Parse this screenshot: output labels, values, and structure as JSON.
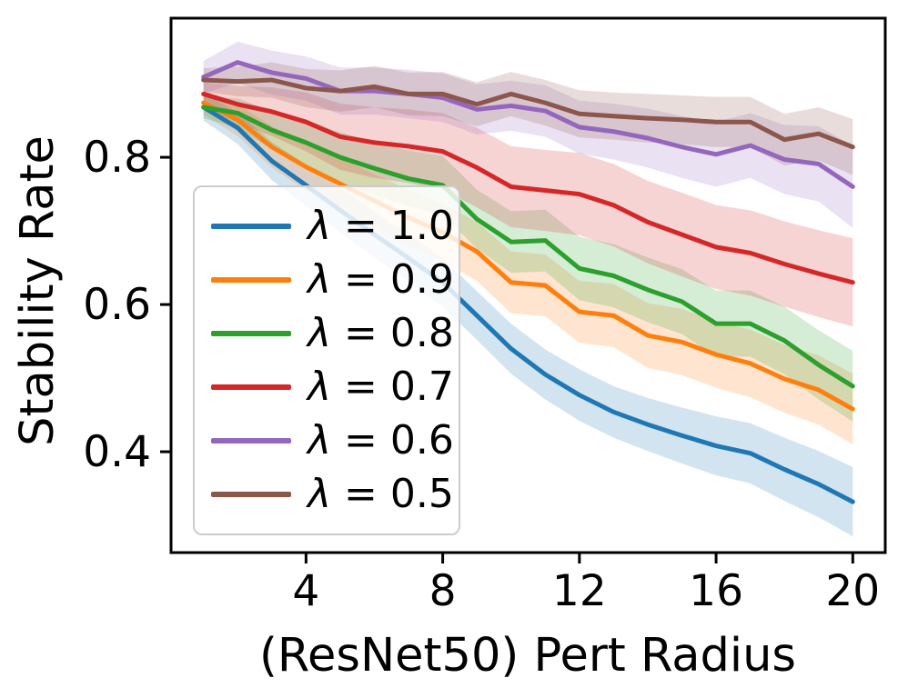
{
  "chart_data": {
    "type": "line",
    "title": "",
    "xlabel": "(ResNet50) Pert Radius",
    "ylabel": "Stability Rate",
    "grid": false,
    "legend_position": "center-left",
    "xlim": [
      0.05,
      20.95
    ],
    "ylim": [
      0.263,
      0.989
    ],
    "xticks": [
      4,
      8,
      12,
      16,
      20
    ],
    "xtick_labels": [
      "4",
      "8",
      "12",
      "16",
      "20"
    ],
    "yticks": [
      0.4,
      0.6,
      0.8
    ],
    "ytick_labels": [
      "0.4",
      "0.6",
      "0.8"
    ],
    "x": [
      1,
      2,
      3,
      4,
      5,
      6,
      7,
      8,
      9,
      10,
      11,
      12,
      13,
      14,
      15,
      16,
      17,
      18,
      19,
      20
    ],
    "series": [
      {
        "name": "λ = 1.0",
        "color": "#1f77b4",
        "values": [
          0.868,
          0.84,
          0.795,
          0.762,
          0.728,
          0.695,
          0.663,
          0.63,
          0.585,
          0.54,
          0.505,
          0.477,
          0.454,
          0.437,
          0.422,
          0.408,
          0.398,
          0.376,
          0.356,
          0.332
        ],
        "band": [
          0.018,
          0.022,
          0.026,
          0.028,
          0.03,
          0.031,
          0.032,
          0.033,
          0.033,
          0.034,
          0.034,
          0.035,
          0.035,
          0.036,
          0.038,
          0.04,
          0.041,
          0.043,
          0.045,
          0.047
        ]
      },
      {
        "name": "λ = 0.9",
        "color": "#ff7f0e",
        "values": [
          0.874,
          0.851,
          0.814,
          0.787,
          0.764,
          0.741,
          0.718,
          0.698,
          0.672,
          0.63,
          0.626,
          0.59,
          0.585,
          0.558,
          0.549,
          0.532,
          0.52,
          0.499,
          0.484,
          0.458
        ],
        "band": [
          0.016,
          0.022,
          0.028,
          0.032,
          0.035,
          0.036,
          0.038,
          0.039,
          0.04,
          0.042,
          0.042,
          0.042,
          0.043,
          0.044,
          0.045,
          0.045,
          0.046,
          0.046,
          0.047,
          0.048
        ]
      },
      {
        "name": "λ = 0.8",
        "color": "#2ca02c",
        "values": [
          0.868,
          0.86,
          0.837,
          0.82,
          0.8,
          0.785,
          0.771,
          0.762,
          0.716,
          0.685,
          0.687,
          0.649,
          0.639,
          0.62,
          0.604,
          0.574,
          0.574,
          0.551,
          0.518,
          0.489
        ],
        "band": [
          0.015,
          0.02,
          0.026,
          0.03,
          0.034,
          0.036,
          0.038,
          0.04,
          0.04,
          0.042,
          0.042,
          0.043,
          0.043,
          0.044,
          0.044,
          0.045,
          0.045,
          0.046,
          0.047,
          0.048
        ]
      },
      {
        "name": "λ = 0.7",
        "color": "#d62728",
        "values": [
          0.886,
          0.872,
          0.862,
          0.848,
          0.828,
          0.82,
          0.815,
          0.808,
          0.786,
          0.76,
          0.755,
          0.75,
          0.735,
          0.712,
          0.695,
          0.678,
          0.67,
          0.655,
          0.642,
          0.63
        ],
        "band": [
          0.016,
          0.025,
          0.033,
          0.04,
          0.045,
          0.048,
          0.05,
          0.052,
          0.054,
          0.055,
          0.055,
          0.056,
          0.056,
          0.056,
          0.057,
          0.057,
          0.058,
          0.058,
          0.059,
          0.06
        ]
      },
      {
        "name": "λ = 0.6",
        "color": "#9467bd",
        "values": [
          0.909,
          0.929,
          0.915,
          0.907,
          0.89,
          0.89,
          0.886,
          0.881,
          0.865,
          0.87,
          0.863,
          0.841,
          0.835,
          0.826,
          0.814,
          0.804,
          0.816,
          0.797,
          0.791,
          0.76
        ],
        "band": [
          0.022,
          0.028,
          0.03,
          0.03,
          0.032,
          0.032,
          0.033,
          0.033,
          0.034,
          0.034,
          0.035,
          0.036,
          0.038,
          0.04,
          0.042,
          0.044,
          0.044,
          0.047,
          0.051,
          0.056
        ]
      },
      {
        "name": "λ = 0.5",
        "color": "#8c564b",
        "values": [
          0.905,
          0.903,
          0.905,
          0.894,
          0.89,
          0.896,
          0.886,
          0.886,
          0.872,
          0.886,
          0.874,
          0.859,
          0.856,
          0.853,
          0.851,
          0.848,
          0.848,
          0.824,
          0.832,
          0.814
        ],
        "band": [
          0.016,
          0.02,
          0.024,
          0.026,
          0.028,
          0.028,
          0.029,
          0.03,
          0.03,
          0.03,
          0.031,
          0.032,
          0.032,
          0.033,
          0.033,
          0.034,
          0.034,
          0.035,
          0.036,
          0.038
        ]
      }
    ]
  }
}
